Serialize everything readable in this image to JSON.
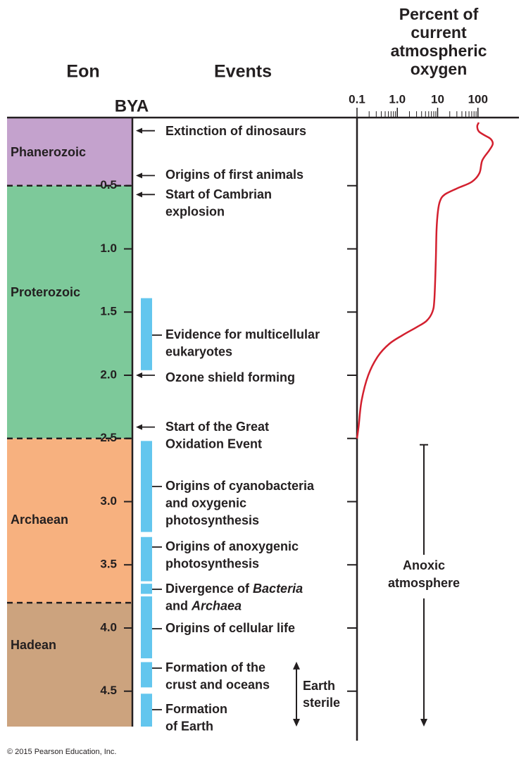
{
  "header": {
    "eon": "Eon",
    "events": "Events",
    "bya": "BYA",
    "oxygen_title": [
      "Percent of",
      "current",
      "atmospheric",
      "oxygen"
    ]
  },
  "eons": [
    {
      "name": "Phanerozoic",
      "end": 0.5,
      "color": "#c4a2cd"
    },
    {
      "name": "Proterozoic",
      "end": 2.5,
      "color": "#7dc99a"
    },
    {
      "name": "Archaean",
      "end": 3.8,
      "color": "#f7b17f"
    },
    {
      "name": "Hadean",
      "end": 4.78,
      "color": "#cca37e"
    }
  ],
  "bya_axis": {
    "lim": [
      0,
      4.78
    ],
    "ticks": [
      0.5,
      {
        "value": 1,
        "label": "1.0"
      },
      1.5,
      {
        "value": 2,
        "label": "2.0"
      },
      2.5,
      {
        "value": 3,
        "label": "3.0"
      },
      3.5,
      {
        "value": 4,
        "label": "4.0"
      },
      4.5
    ]
  },
  "oxygen_axis": {
    "lim": [
      0.1,
      1000
    ],
    "log": true,
    "ticks": [
      0.1,
      {
        "value": 1,
        "label": "1.0"
      },
      10,
      100
    ]
  },
  "oxygen_curve": {
    "color": "#d3202f",
    "bya": [
      0,
      0.03,
      0.07,
      0.1,
      0.13,
      0.17,
      0.22,
      0.3,
      0.4,
      0.47,
      0.52,
      0.57,
      0.62,
      0.7,
      0.85,
      1.1,
      1.4,
      1.5,
      1.57,
      1.62,
      1.68,
      1.75,
      1.85,
      2.0,
      2.2,
      2.4,
      2.5
    ],
    "percent": [
      105,
      96,
      105,
      144,
      207,
      233,
      191,
      128,
      109,
      70,
      31,
      15,
      11.5,
      10.2,
      9.4,
      9.0,
      8.3,
      7.4,
      5.3,
      3.0,
      1.4,
      0.64,
      0.33,
      0.19,
      0.13,
      0.11,
      0.1
    ]
  },
  "events": [
    {
      "lines": [
        "Extinction of dinosaurs"
      ],
      "arrow_at": 0.065
    },
    {
      "lines": [
        "Origins of first animals"
      ],
      "arrow_at": 0.42
    },
    {
      "lines": [
        "Start of Cambrian",
        "explosion"
      ],
      "arrow_at": 0.57
    },
    {
      "lines": [
        "Evidence for multicellular",
        "eukaryotes"
      ]
    },
    {
      "lines": [
        "Ozone shield forming"
      ],
      "arrow_at": 2.0
    },
    {
      "lines": [
        "Start of the Great",
        "Oxidation Event"
      ],
      "arrow_at": 2.41
    },
    {
      "lines": [
        "Origins of cyanobacteria",
        "and oxygenic",
        "photosynthesis"
      ]
    },
    {
      "lines": [
        "Origins of anoxygenic",
        "photosynthesis"
      ]
    },
    {
      "lines": [
        [
          "Divergence of ",
          {
            "text": "Bacteria",
            "italic": true
          }
        ],
        [
          "and ",
          {
            "text": "Archaea",
            "italic": true
          }
        ]
      ]
    },
    {
      "lines": [
        "Origins of cellular life"
      ]
    },
    {
      "lines": [
        "Formation of the",
        "crust and oceans"
      ]
    },
    {
      "lines": [
        "Formation",
        "of Earth"
      ]
    }
  ],
  "bars": {
    "color": "#63c6ee",
    "spans": [
      [
        1.39,
        1.96
      ],
      [
        2.52,
        3.24
      ],
      [
        3.28,
        3.63
      ],
      [
        3.65,
        3.73
      ],
      [
        3.75,
        4.24
      ],
      [
        4.27,
        4.47
      ],
      [
        4.52,
        4.78
      ]
    ]
  },
  "anoxic": {
    "label": [
      "Anoxic",
      "atmosphere"
    ],
    "range": [
      2.55,
      4.78
    ]
  },
  "sterile": {
    "label": [
      "Earth",
      "sterile"
    ],
    "range": [
      4.3,
      4.78
    ]
  },
  "copyright": "© 2015 Pearson Education, Inc."
}
